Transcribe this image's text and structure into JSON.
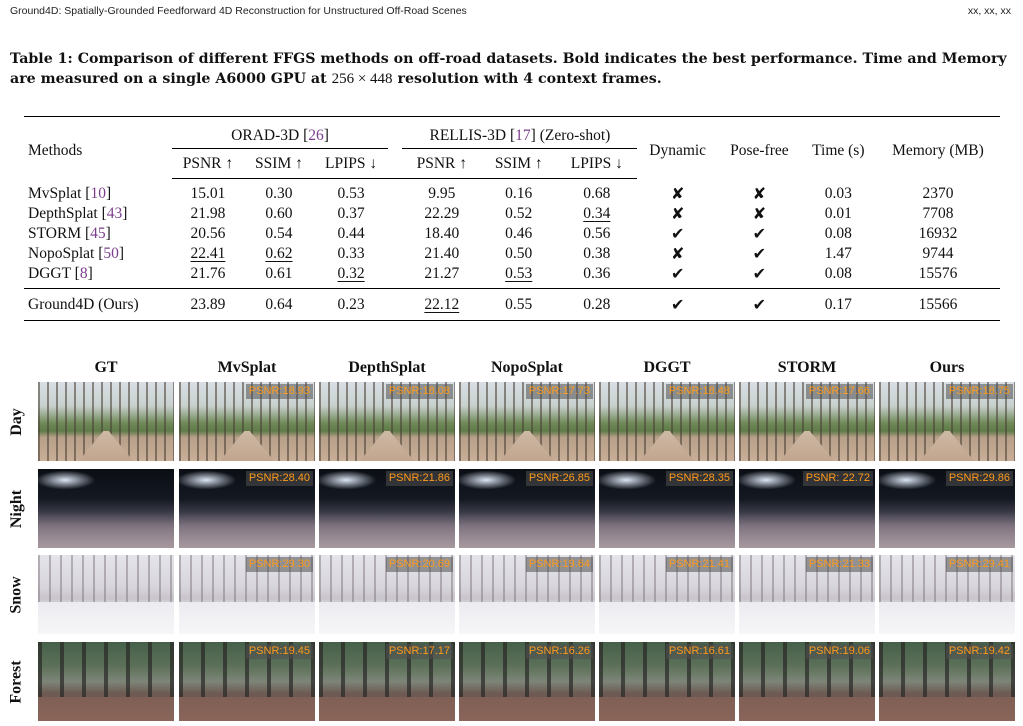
{
  "header": {
    "left": "Ground4D: Spatially-Grounded Feedforward 4D Reconstruction for Unstructured Off-Road Scenes",
    "right": "xx, xx, xx"
  },
  "caption": {
    "part1": "Table 1: Comparison of different FFGS methods on off-road datasets. Bold indicates the best performance. Time and Memory are measured on a single A6000 GPU at",
    "math": "256 × 448",
    "part2": "resolution with 4 context frames."
  },
  "table": {
    "methods_header": "Methods",
    "groups": [
      {
        "name": "ORAD-3D",
        "cite": "26",
        "suffix": ""
      },
      {
        "name": "RELLIS-3D",
        "cite": "17",
        "suffix": "(Zero-shot)"
      }
    ],
    "metrics": [
      "PSNR ↑",
      "SSIM ↑",
      "LPIPS ↓"
    ],
    "extra_headers": [
      "Dynamic",
      "Pose-free",
      "Time (s)",
      "Memory (MB)"
    ],
    "check": "✔",
    "cross": "✘",
    "rows": [
      {
        "method": "MvSplat",
        "cite": "10",
        "orad": [
          "15.01",
          "0.30",
          "0.53"
        ],
        "rellis": [
          "9.95",
          "0.16",
          "0.68"
        ],
        "dynamic": "✘",
        "posefree": "✘",
        "time": "0.03",
        "memory": "2370"
      },
      {
        "method": "DepthSplat",
        "cite": "43",
        "orad": [
          "21.98",
          "0.60",
          "0.37"
        ],
        "rellis": [
          "22.29",
          "0.52",
          "0.34"
        ],
        "dynamic": "✘",
        "posefree": "✘",
        "time": "0.01",
        "memory": "7708"
      },
      {
        "method": "STORM",
        "cite": "45",
        "orad": [
          "20.56",
          "0.54",
          "0.44"
        ],
        "rellis": [
          "18.40",
          "0.46",
          "0.56"
        ],
        "dynamic": "✔",
        "posefree": "✔",
        "time": "0.08",
        "memory": "16932"
      },
      {
        "method": "NopoSplat",
        "cite": "50",
        "orad": [
          "22.41",
          "0.62",
          "0.33"
        ],
        "rellis": [
          "21.40",
          "0.50",
          "0.38"
        ],
        "dynamic": "✘",
        "posefree": "✔",
        "time": "1.47",
        "memory": "9744"
      },
      {
        "method": "DGGT",
        "cite": "8",
        "orad": [
          "21.76",
          "0.61",
          "0.32"
        ],
        "rellis": [
          "21.27",
          "0.53",
          "0.36"
        ],
        "dynamic": "✔",
        "posefree": "✔",
        "time": "0.08",
        "memory": "15576"
      }
    ],
    "ours": {
      "method": "Ground4D (Ours)",
      "orad": [
        "23.89",
        "0.64",
        "0.23"
      ],
      "rellis": [
        "22.12",
        "0.55",
        "0.28"
      ],
      "dynamic": "✔",
      "posefree": "✔",
      "time": "0.17",
      "memory": "15566"
    }
  },
  "figure": {
    "columns": [
      "GT",
      "MvSplat",
      "DepthSplat",
      "NopoSplat",
      "DGGT",
      "STORM",
      "Ours"
    ],
    "rows": [
      {
        "label": "Day",
        "scene": "day",
        "psnr": [
          "PSNR:18.93",
          "PSNR:18.08",
          "PSNR:17.73",
          "PSNR:18.48",
          "PSNR:17.66",
          "PSNR:18.75"
        ]
      },
      {
        "label": "Night",
        "scene": "night",
        "psnr": [
          "PSNR:28.40",
          "PSNR:21.86",
          "PSNR:26.85",
          "PSNR:28.35",
          "PSNR: 22.72",
          "PSNR:29.86"
        ]
      },
      {
        "label": "Snow",
        "scene": "snow",
        "psnr": [
          "PSNR:29.30",
          "PSNR:20.69",
          "PSNR:19.64",
          "PSNR:21.41",
          "PSNR:21.33",
          "PSNR:29.41"
        ]
      },
      {
        "label": "Forest",
        "scene": "forest",
        "psnr": [
          "PSNR:19.45",
          "PSNR:17.17",
          "PSNR:16.26",
          "PSNR:16.61",
          "PSNR:19.06",
          "PSNR:19.42"
        ]
      }
    ]
  }
}
